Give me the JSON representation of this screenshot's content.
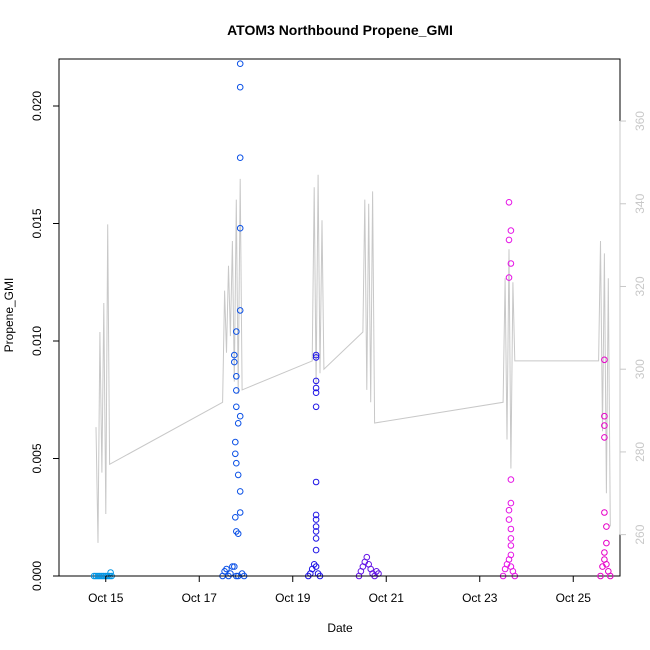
{
  "chart_data": {
    "type": "scatter",
    "title": "ATOM3 Northbound Propene_GMI",
    "xlabel": "Date",
    "ylabel": "Propene_GMI",
    "xlim": [
      "2016-10-14",
      "2016-10-26"
    ],
    "ylim": [
      0,
      0.022
    ],
    "y2lim": [
      250,
      375
    ],
    "xticks": [
      {
        "value": "2016-10-15",
        "label": "Oct 15"
      },
      {
        "value": "2016-10-17",
        "label": "Oct 17"
      },
      {
        "value": "2016-10-19",
        "label": "Oct 19"
      },
      {
        "value": "2016-10-21",
        "label": "Oct 21"
      },
      {
        "value": "2016-10-23",
        "label": "Oct 23"
      },
      {
        "value": "2016-10-25",
        "label": "Oct 25"
      }
    ],
    "yticks": [
      {
        "value": 0.0,
        "label": "0.000"
      },
      {
        "value": 0.005,
        "label": "0.005"
      },
      {
        "value": 0.01,
        "label": "0.010"
      },
      {
        "value": 0.015,
        "label": "0.015"
      },
      {
        "value": 0.02,
        "label": "0.020"
      }
    ],
    "y2ticks": [
      {
        "value": 260,
        "label": "260"
      },
      {
        "value": 280,
        "label": "280"
      },
      {
        "value": 300,
        "label": "300"
      },
      {
        "value": 320,
        "label": "320"
      },
      {
        "value": 340,
        "label": "340"
      },
      {
        "value": 360,
        "label": "360"
      }
    ],
    "grid": false,
    "series": [
      {
        "marker": "open-circle",
        "color": "#0096e6",
        "points": [
          [
            "2016-10-14T18:00",
            0.0
          ],
          [
            "2016-10-14T19:00",
            0.0
          ],
          [
            "2016-10-14T20:00",
            0.0
          ],
          [
            "2016-10-14T21:00",
            0.0
          ],
          [
            "2016-10-14T22:00",
            0.0
          ],
          [
            "2016-10-14T23:00",
            0.0
          ],
          [
            "2016-10-15T00:00",
            0.0
          ],
          [
            "2016-10-15T01:00",
            0.0
          ],
          [
            "2016-10-15T02:00",
            0.0
          ],
          [
            "2016-10-15T02:30",
            0.00015
          ],
          [
            "2016-10-15T03:00",
            0.0
          ]
        ]
      },
      {
        "marker": "open-circle",
        "color": "#0a50e6",
        "points": [
          [
            "2016-10-17T12:00",
            0.0
          ],
          [
            "2016-10-17T13:00",
            0.0002
          ],
          [
            "2016-10-17T14:00",
            0.0003
          ],
          [
            "2016-10-17T15:00",
            0.0
          ],
          [
            "2016-10-17T16:00",
            0.0001
          ],
          [
            "2016-10-17T17:00",
            0.0004
          ],
          [
            "2016-10-17T18:00",
            0.0004
          ],
          [
            "2016-10-17T19:00",
            0.0
          ],
          [
            "2016-10-17T20:00",
            0.0
          ],
          [
            "2016-10-17T19:00",
            0.0019
          ],
          [
            "2016-10-17T20:00",
            0.0018
          ],
          [
            "2016-10-17T18:30",
            0.0025
          ],
          [
            "2016-10-17T18:00",
            0.0094
          ],
          [
            "2016-10-17T19:00",
            0.0104
          ],
          [
            "2016-10-17T18:30",
            0.0057
          ],
          [
            "2016-10-17T18:30",
            0.0052
          ],
          [
            "2016-10-17T19:00",
            0.0048
          ],
          [
            "2016-10-17T20:00",
            0.0043
          ],
          [
            "2016-10-17T21:00",
            0.0036
          ],
          [
            "2016-10-17T21:00",
            0.0027
          ],
          [
            "2016-10-17T19:00",
            0.0072
          ],
          [
            "2016-10-17T19:00",
            0.0079
          ],
          [
            "2016-10-17T19:00",
            0.0085
          ],
          [
            "2016-10-17T18:00",
            0.0091
          ],
          [
            "2016-10-17T20:00",
            0.0065
          ],
          [
            "2016-10-17T21:00",
            0.0068
          ],
          [
            "2016-10-17T21:00",
            0.0113
          ],
          [
            "2016-10-17T21:00",
            0.0148
          ],
          [
            "2016-10-17T21:00",
            0.0178
          ],
          [
            "2016-10-17T21:00",
            0.0208
          ],
          [
            "2016-10-17T21:00",
            0.0218
          ],
          [
            "2016-10-17T22:00",
            0.0001
          ],
          [
            "2016-10-17T23:00",
            0.0
          ]
        ]
      },
      {
        "marker": "open-circle",
        "color": "#1e14e6",
        "points": [
          [
            "2016-10-19T08:00",
            0.0
          ],
          [
            "2016-10-19T09:00",
            0.0001
          ],
          [
            "2016-10-19T10:00",
            0.0003
          ],
          [
            "2016-10-19T11:00",
            0.0005
          ],
          [
            "2016-10-19T12:00",
            0.0004
          ],
          [
            "2016-10-19T13:00",
            0.0001
          ],
          [
            "2016-10-19T14:00",
            0.0
          ],
          [
            "2016-10-19T12:00",
            0.0011
          ],
          [
            "2016-10-19T12:00",
            0.0016
          ],
          [
            "2016-10-19T12:00",
            0.0019
          ],
          [
            "2016-10-19T12:00",
            0.0021
          ],
          [
            "2016-10-19T12:00",
            0.0024
          ],
          [
            "2016-10-19T12:00",
            0.0026
          ],
          [
            "2016-10-19T12:00",
            0.004
          ],
          [
            "2016-10-19T12:00",
            0.0072
          ],
          [
            "2016-10-19T12:00",
            0.0078
          ],
          [
            "2016-10-19T12:00",
            0.008
          ],
          [
            "2016-10-19T12:00",
            0.0083
          ],
          [
            "2016-10-19T12:00",
            0.0093
          ],
          [
            "2016-10-19T12:00",
            0.0094
          ]
        ]
      },
      {
        "marker": "open-circle",
        "color": "#6414e6",
        "points": [
          [
            "2016-10-20T10:00",
            0.0
          ],
          [
            "2016-10-20T11:00",
            0.0002
          ],
          [
            "2016-10-20T12:00",
            0.0004
          ],
          [
            "2016-10-20T13:00",
            0.0006
          ],
          [
            "2016-10-20T14:00",
            0.0008
          ],
          [
            "2016-10-20T15:00",
            0.0005
          ],
          [
            "2016-10-20T16:00",
            0.0003
          ],
          [
            "2016-10-20T17:00",
            0.0001
          ],
          [
            "2016-10-20T18:00",
            0.0
          ],
          [
            "2016-10-20T19:00",
            0.0002
          ],
          [
            "2016-10-20T20:00",
            0.0001
          ]
        ]
      },
      {
        "marker": "open-circle",
        "color": "#e614e6",
        "points": [
          [
            "2016-10-23T12:00",
            0.0
          ],
          [
            "2016-10-23T13:00",
            0.0003
          ],
          [
            "2016-10-23T14:00",
            0.0005
          ],
          [
            "2016-10-23T15:00",
            0.0007
          ],
          [
            "2016-10-23T16:00",
            0.0004
          ],
          [
            "2016-10-23T17:00",
            0.0002
          ],
          [
            "2016-10-23T18:00",
            0.0
          ],
          [
            "2016-10-23T16:00",
            0.0009
          ],
          [
            "2016-10-23T16:00",
            0.0013
          ],
          [
            "2016-10-23T16:00",
            0.0016
          ],
          [
            "2016-10-23T16:00",
            0.002
          ],
          [
            "2016-10-23T15:00",
            0.0024
          ],
          [
            "2016-10-23T15:00",
            0.0028
          ],
          [
            "2016-10-23T16:00",
            0.0031
          ],
          [
            "2016-10-23T16:00",
            0.0041
          ],
          [
            "2016-10-23T15:00",
            0.0127
          ],
          [
            "2016-10-23T16:00",
            0.0133
          ],
          [
            "2016-10-23T15:00",
            0.0143
          ],
          [
            "2016-10-23T16:00",
            0.0147
          ],
          [
            "2016-10-23T15:00",
            0.0159
          ]
        ]
      },
      {
        "marker": "open-circle",
        "color": "#e600c8",
        "points": [
          [
            "2016-10-25T14:00",
            0.0
          ],
          [
            "2016-10-25T15:00",
            0.0004
          ],
          [
            "2016-10-25T16:00",
            0.0007
          ],
          [
            "2016-10-25T17:00",
            0.0005
          ],
          [
            "2016-10-25T18:00",
            0.0002
          ],
          [
            "2016-10-25T19:00",
            0.0
          ],
          [
            "2016-10-25T16:00",
            0.001
          ],
          [
            "2016-10-25T17:00",
            0.0014
          ],
          [
            "2016-10-25T17:00",
            0.0021
          ],
          [
            "2016-10-25T16:00",
            0.0027
          ],
          [
            "2016-10-25T16:00",
            0.0059
          ],
          [
            "2016-10-25T16:00",
            0.0064
          ],
          [
            "2016-10-25T16:00",
            0.0068
          ],
          [
            "2016-10-25T16:00",
            0.0092
          ]
        ]
      }
    ],
    "secondary_line": {
      "color": "#c8c8c8",
      "points": [
        [
          "2016-10-14T19:00",
          286
        ],
        [
          "2016-10-14T20:00",
          258
        ],
        [
          "2016-10-14T21:00",
          309
        ],
        [
          "2016-10-14T22:00",
          275
        ],
        [
          "2016-10-14T23:00",
          316
        ],
        [
          "2016-10-15T00:00",
          265
        ],
        [
          "2016-10-15T01:00",
          335
        ],
        [
          "2016-10-15T02:00",
          277
        ],
        [
          "2016-10-17T12:00",
          292
        ],
        [
          "2016-10-17T13:00",
          319
        ],
        [
          "2016-10-17T14:00",
          304
        ],
        [
          "2016-10-17T15:00",
          325
        ],
        [
          "2016-10-17T16:00",
          308
        ],
        [
          "2016-10-17T17:00",
          331
        ],
        [
          "2016-10-17T18:00",
          297
        ],
        [
          "2016-10-17T19:00",
          341
        ],
        [
          "2016-10-17T20:00",
          294
        ],
        [
          "2016-10-17T21:00",
          346
        ],
        [
          "2016-10-17T22:00",
          295
        ],
        [
          "2016-10-19T10:00",
          302
        ],
        [
          "2016-10-19T11:00",
          344
        ],
        [
          "2016-10-19T12:00",
          296
        ],
        [
          "2016-10-19T13:00",
          347
        ],
        [
          "2016-10-19T14:00",
          299
        ],
        [
          "2016-10-19T15:00",
          336
        ],
        [
          "2016-10-19T16:00",
          300
        ],
        [
          "2016-10-20T12:00",
          309
        ],
        [
          "2016-10-20T13:00",
          341
        ],
        [
          "2016-10-20T14:00",
          295
        ],
        [
          "2016-10-20T15:00",
          340
        ],
        [
          "2016-10-20T16:00",
          292
        ],
        [
          "2016-10-20T17:00",
          343
        ],
        [
          "2016-10-20T18:00",
          287
        ],
        [
          "2016-10-23T12:00",
          292
        ],
        [
          "2016-10-23T13:00",
          322
        ],
        [
          "2016-10-23T14:00",
          283
        ],
        [
          "2016-10-23T15:00",
          329
        ],
        [
          "2016-10-23T16:00",
          276
        ],
        [
          "2016-10-23T17:00",
          321
        ],
        [
          "2016-10-23T18:00",
          302
        ],
        [
          "2016-10-25T13:00",
          302
        ],
        [
          "2016-10-25T14:00",
          331
        ],
        [
          "2016-10-25T15:00",
          285
        ],
        [
          "2016-10-25T16:00",
          328
        ],
        [
          "2016-10-25T17:00",
          270
        ],
        [
          "2016-10-25T18:00",
          322
        ],
        [
          "2016-10-25T19:00",
          262
        ]
      ]
    }
  }
}
